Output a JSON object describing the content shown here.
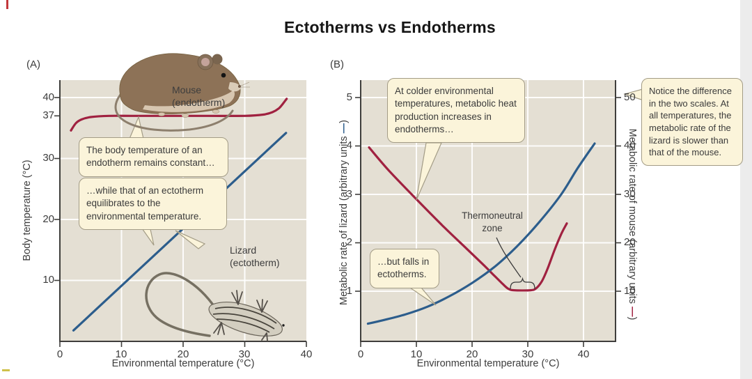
{
  "title": "Ectotherms vs Endotherms",
  "colors": {
    "mouse_red": "#a02140",
    "lizard_blue": "#2c5d8c",
    "plot_bg": "#e4dfd3",
    "callout_bg": "#fbf4da"
  },
  "panel_a": {
    "label": "(A)",
    "x_axis": {
      "label": "Environmental temperature (°C)",
      "ticks": [
        "0",
        "10",
        "20",
        "30",
        "40"
      ]
    },
    "y_axis": {
      "label": "Body temperature (°C)",
      "ticks": [
        "40",
        "37",
        "30",
        "20",
        "10"
      ]
    },
    "mouse_label": "Mouse\n(endotherm)",
    "lizard_label": "Lizard\n(ectotherm)",
    "callouts": [
      {
        "text": "The body temperature of an endotherm remains constant…"
      },
      {
        "text": "…while that of an ectotherm equilibrates to the environmental temperature."
      }
    ]
  },
  "panel_b": {
    "label": "(B)",
    "x_axis": {
      "label": "Environmental temperature (°C)",
      "ticks": [
        "0",
        "10",
        "20",
        "30",
        "40"
      ]
    },
    "y_axis_left": {
      "text": "Metabolic rate of lizard (arbitrary units ",
      "dash": "—",
      "close": ")",
      "ticks": [
        "5",
        "4",
        "3",
        "2",
        "1"
      ]
    },
    "y_axis_right": {
      "text": "Metabolic rate of mouse (arbitrary units ",
      "dash": "—",
      "close": ")",
      "ticks": [
        "50",
        "40",
        "30",
        "20",
        "10"
      ]
    },
    "zone_label": "Thermoneutral\nzone",
    "callouts": [
      {
        "text": "At colder environmental temperatures, metabolic heat production increases in endotherms…"
      },
      {
        "text": "…but falls in ectotherms."
      },
      {
        "text": "Notice the difference in the two scales. At all temperatures, the metabolic rate of the lizard is slower than that of the mouse."
      }
    ]
  },
  "chart_data": [
    {
      "type": "line",
      "panel": "(A)",
      "xlabel": "Environmental temperature (°C)",
      "ylabel": "Body temperature (°C)",
      "xlim": [
        0,
        40
      ],
      "ylim": [
        0,
        43
      ],
      "x_ticks": [
        0,
        10,
        20,
        30,
        40
      ],
      "y_ticks": [
        10,
        20,
        30,
        37,
        40
      ],
      "grid": true,
      "series": [
        {
          "name": "Mouse (endotherm) body temperature",
          "color": "#a02140",
          "x": [
            1.8,
            2.6,
            3.5,
            5,
            8,
            12,
            18,
            24,
            30,
            33,
            34.5,
            35.5,
            36.2,
            36.8
          ],
          "y": [
            34.6,
            35.8,
            36.4,
            36.8,
            37,
            37,
            37,
            37,
            37,
            37.2,
            37.6,
            38.2,
            39,
            39.8
          ]
        },
        {
          "name": "Lizard (ectotherm) body temperature equals environmental temperature",
          "color": "#2c5d8c",
          "x": [
            2.2,
            36.7
          ],
          "y": [
            1.8,
            34.2
          ]
        }
      ]
    },
    {
      "type": "line",
      "panel": "(B)",
      "xlabel": "Environmental temperature (°C)",
      "ylabel_left": "Metabolic rate of lizard (arbitrary units)",
      "ylabel_right": "Metabolic rate of mouse (arbitrary units)",
      "xlim": [
        0,
        46
      ],
      "ylim_left": [
        0,
        5.4
      ],
      "ylim_right": [
        0,
        54
      ],
      "x_ticks": [
        0,
        10,
        20,
        30,
        40
      ],
      "y_ticks_left": [
        1,
        2,
        3,
        4,
        5
      ],
      "y_ticks_right": [
        10,
        20,
        30,
        40,
        50
      ],
      "grid": true,
      "annotations": [
        "Thermoneutral zone (flat minimum of mouse curve, ~27–31 °C)"
      ],
      "series": [
        {
          "name": "Mouse metabolic rate (right axis)",
          "color": "#a02140",
          "axis": "right",
          "x": [
            1.5,
            5,
            10,
            15,
            19,
            22,
            24,
            25.5,
            26.5,
            27.5,
            30.5,
            31.5,
            32.5,
            33.5,
            34.8,
            36,
            37
          ],
          "y": [
            39.7,
            35,
            29,
            23.2,
            18.8,
            15.5,
            13.2,
            11.5,
            10.5,
            10.2,
            10.2,
            10.6,
            12,
            14.5,
            18.5,
            21.8,
            24
          ]
        },
        {
          "name": "Lizard metabolic rate (left axis)",
          "color": "#2c5d8c",
          "axis": "left",
          "x": [
            1.3,
            4,
            8,
            12,
            16,
            20,
            24,
            28,
            32,
            36,
            39,
            42
          ],
          "y": [
            0.33,
            0.4,
            0.52,
            0.68,
            0.9,
            1.17,
            1.5,
            1.92,
            2.42,
            3,
            3.55,
            4.05
          ]
        }
      ]
    }
  ]
}
